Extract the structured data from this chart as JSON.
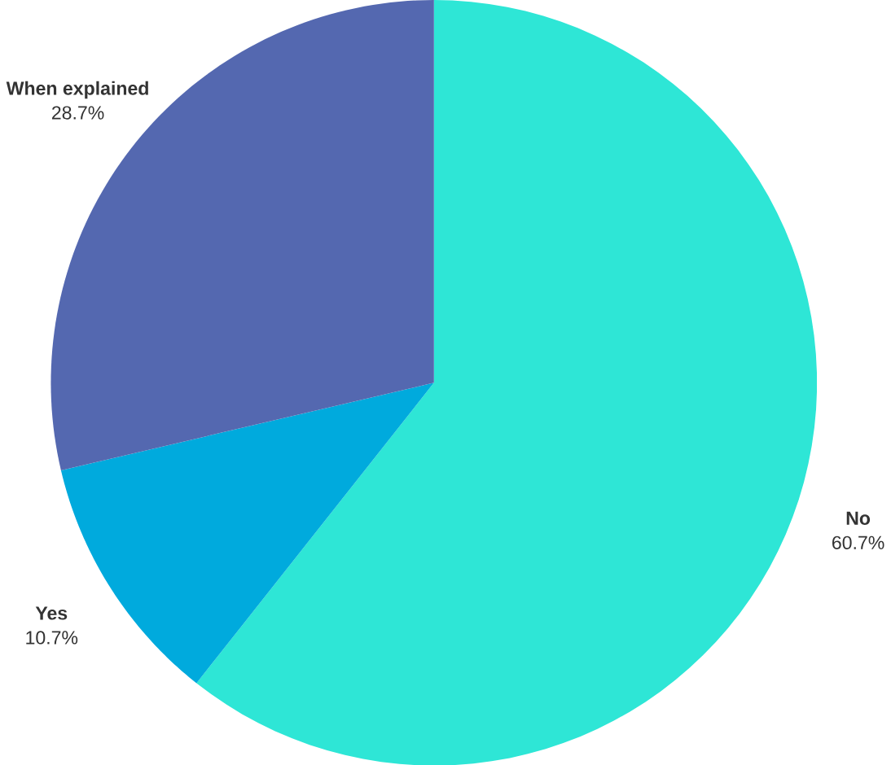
{
  "chart_data": {
    "type": "pie",
    "categories": [
      "No",
      "Yes",
      "When explained"
    ],
    "values": [
      60.7,
      10.7,
      28.7
    ],
    "value_labels": [
      "60.7%",
      "10.7%",
      "28.7%"
    ],
    "colors": [
      "#2ee6d6",
      "#00aadd",
      "#5468b0"
    ]
  }
}
